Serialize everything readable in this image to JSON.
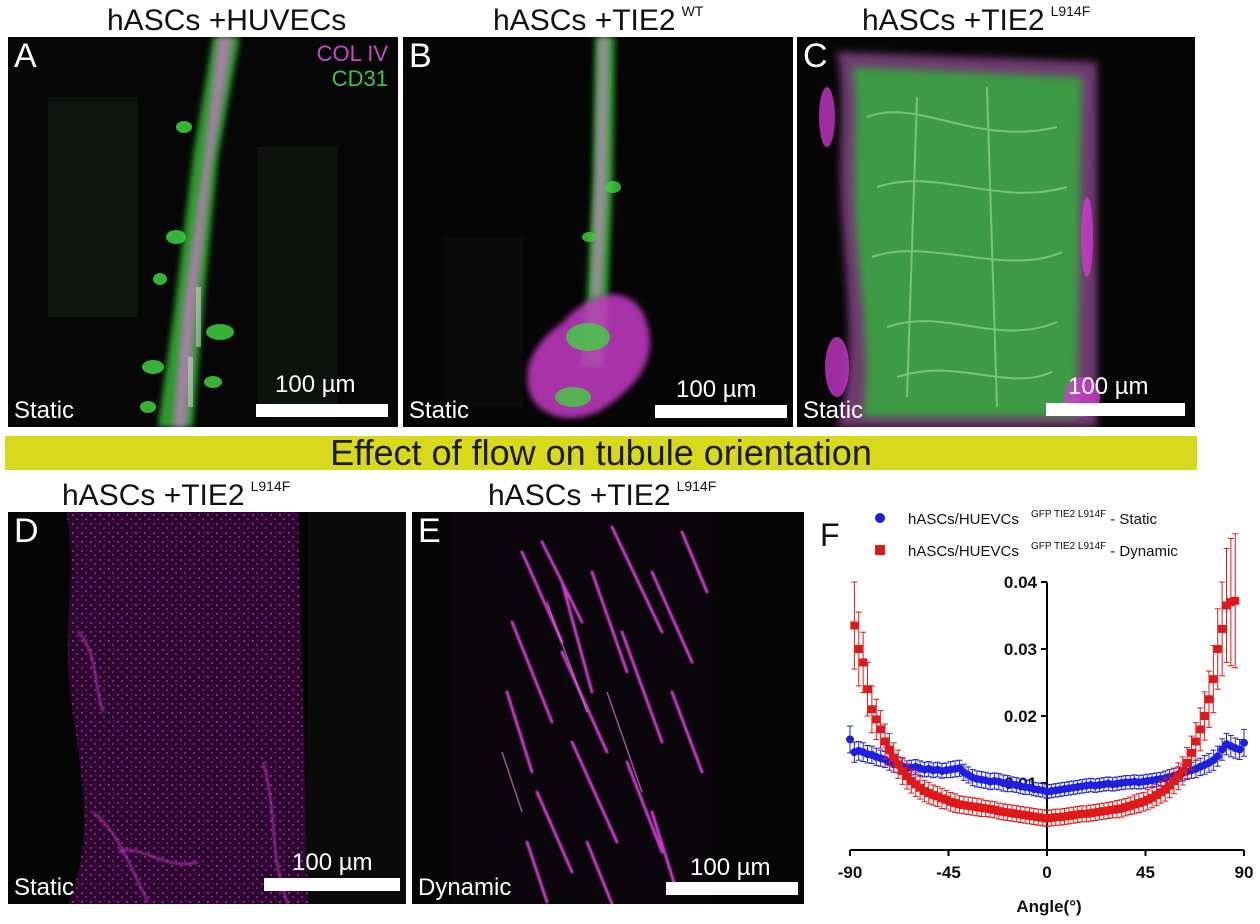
{
  "titles": {
    "a": {
      "text": "hASCs +HUVECs",
      "sup": ""
    },
    "b": {
      "text": "hASCs +TIE2",
      "sup": "WT"
    },
    "c": {
      "text": "hASCs +TIE2",
      "sup": "L914F"
    },
    "d": {
      "text": "hASCs +TIE2",
      "sup": "L914F"
    },
    "e": {
      "text": "hASCs +TIE2",
      "sup": "L914F"
    }
  },
  "panels": {
    "a": {
      "letter": "A",
      "condition": "Static",
      "scalebar": "100 µm"
    },
    "b": {
      "letter": "B",
      "condition": "Static",
      "scalebar": "100 µm"
    },
    "c": {
      "letter": "C",
      "condition": "Static",
      "scalebar": "100 µm"
    },
    "d": {
      "letter": "D",
      "condition": "Static",
      "scalebar": "100 µm"
    },
    "e": {
      "letter": "E",
      "condition": "Dynamic",
      "scalebar": "100 µm"
    }
  },
  "channels": {
    "col4": "COL IV",
    "cd31": "CD31"
  },
  "colors": {
    "magenta": "#d63ad6",
    "green": "#3fd23f",
    "banner": "#d9d91c",
    "static_series": "#1f1fe0",
    "dynamic_series": "#e01818"
  },
  "banner": "Effect of flow on tubule orientation",
  "chart_letter": "F",
  "chart_data": {
    "type": "scatter",
    "xlabel": "Angle(°)",
    "ylabel": "",
    "xlim": [
      -90,
      90
    ],
    "ylim": [
      0,
      0.04
    ],
    "xticks": [
      "-90",
      "-45",
      "0",
      "45",
      "90"
    ],
    "yticks": [
      "0.01",
      "0.02",
      "0.03",
      "0.04"
    ],
    "legend_position": "top",
    "series": [
      {
        "name": "hASCs/HUEVCs",
        "sup": "GFP TIE2 L914F",
        "suffix": "- Static",
        "marker": "circle",
        "points": [
          [
            -90,
            0.0165,
            0.002
          ],
          [
            -88,
            0.0146,
            0.0015
          ],
          [
            -86,
            0.0148,
            0.0014
          ],
          [
            -84,
            0.0146,
            0.0014
          ],
          [
            -82,
            0.0143,
            0.0013
          ],
          [
            -80,
            0.0142,
            0.0013
          ],
          [
            -78,
            0.0139,
            0.0013
          ],
          [
            -76,
            0.0137,
            0.0012
          ],
          [
            -74,
            0.0135,
            0.0012
          ],
          [
            -72,
            0.0131,
            0.0012
          ],
          [
            -70,
            0.0128,
            0.0012
          ],
          [
            -68,
            0.0127,
            0.0012
          ],
          [
            -66,
            0.0125,
            0.0011
          ],
          [
            -64,
            0.0122,
            0.0011
          ],
          [
            -62,
            0.0123,
            0.0011
          ],
          [
            -60,
            0.0124,
            0.0011
          ],
          [
            -58,
            0.0122,
            0.0011
          ],
          [
            -56,
            0.012,
            0.0011
          ],
          [
            -54,
            0.0121,
            0.0011
          ],
          [
            -52,
            0.0119,
            0.0011
          ],
          [
            -50,
            0.012,
            0.0011
          ],
          [
            -48,
            0.0118,
            0.0011
          ],
          [
            -46,
            0.0119,
            0.0011
          ],
          [
            -44,
            0.012,
            0.0012
          ],
          [
            -42,
            0.0121,
            0.0012
          ],
          [
            -40,
            0.0122,
            0.0012
          ],
          [
            -38,
            0.0116,
            0.0012
          ],
          [
            -36,
            0.0112,
            0.0012
          ],
          [
            -34,
            0.0108,
            0.0012
          ],
          [
            -32,
            0.0106,
            0.0012
          ],
          [
            -30,
            0.0105,
            0.0012
          ],
          [
            -28,
            0.0104,
            0.0012
          ],
          [
            -26,
            0.0102,
            0.0012
          ],
          [
            -24,
            0.0103,
            0.0012
          ],
          [
            -22,
            0.0102,
            0.0012
          ],
          [
            -20,
            0.01,
            0.0012
          ],
          [
            -18,
            0.0099,
            0.0012
          ],
          [
            -16,
            0.0098,
            0.0011
          ],
          [
            -14,
            0.0097,
            0.0011
          ],
          [
            -12,
            0.0095,
            0.0011
          ],
          [
            -10,
            0.0094,
            0.0011
          ],
          [
            -8,
            0.0093,
            0.001
          ],
          [
            -6,
            0.0091,
            0.001
          ],
          [
            -4,
            0.009,
            0.001
          ],
          [
            -2,
            0.0089,
            0.001
          ],
          [
            0,
            0.0087,
            0.001
          ],
          [
            2,
            0.0088,
            0.001
          ],
          [
            4,
            0.0089,
            0.001
          ],
          [
            6,
            0.009,
            0.001
          ],
          [
            8,
            0.0091,
            0.001
          ],
          [
            10,
            0.0092,
            0.001
          ],
          [
            12,
            0.0093,
            0.001
          ],
          [
            14,
            0.0094,
            0.001
          ],
          [
            16,
            0.0095,
            0.001
          ],
          [
            18,
            0.0096,
            0.001
          ],
          [
            20,
            0.0097,
            0.001
          ],
          [
            22,
            0.0096,
            0.001
          ],
          [
            24,
            0.0097,
            0.001
          ],
          [
            26,
            0.0098,
            0.001
          ],
          [
            28,
            0.0099,
            0.001
          ],
          [
            30,
            0.0098,
            0.001
          ],
          [
            32,
            0.0099,
            0.001
          ],
          [
            34,
            0.01,
            0.001
          ],
          [
            36,
            0.0101,
            0.001
          ],
          [
            38,
            0.0101,
            0.001
          ],
          [
            40,
            0.0102,
            0.001
          ],
          [
            42,
            0.0101,
            0.001
          ],
          [
            44,
            0.0102,
            0.001
          ],
          [
            46,
            0.0103,
            0.001
          ],
          [
            48,
            0.0104,
            0.001
          ],
          [
            50,
            0.0105,
            0.001
          ],
          [
            52,
            0.0106,
            0.001
          ],
          [
            54,
            0.0107,
            0.0011
          ],
          [
            56,
            0.0109,
            0.0011
          ],
          [
            58,
            0.0111,
            0.0011
          ],
          [
            60,
            0.0113,
            0.0011
          ],
          [
            62,
            0.0115,
            0.0012
          ],
          [
            64,
            0.0117,
            0.0012
          ],
          [
            66,
            0.0119,
            0.0012
          ],
          [
            68,
            0.0121,
            0.0013
          ],
          [
            70,
            0.0124,
            0.0013
          ],
          [
            72,
            0.0127,
            0.0014
          ],
          [
            74,
            0.013,
            0.0014
          ],
          [
            76,
            0.0134,
            0.0015
          ],
          [
            78,
            0.014,
            0.0015
          ],
          [
            80,
            0.015,
            0.0016
          ],
          [
            82,
            0.0158,
            0.0016
          ],
          [
            84,
            0.0155,
            0.0016
          ],
          [
            86,
            0.0152,
            0.0015
          ],
          [
            88,
            0.015,
            0.0015
          ],
          [
            90,
            0.016,
            0.002
          ]
        ]
      },
      {
        "name": "hASCs/HUEVCs",
        "sup": "GFP TIE2 L914F",
        "suffix": "- Dynamic",
        "marker": "square",
        "points": [
          [
            -88,
            0.0335,
            0.0065
          ],
          [
            -86,
            0.03,
            0.0055
          ],
          [
            -84,
            0.028,
            0.0045
          ],
          [
            -82,
            0.024,
            0.004
          ],
          [
            -80,
            0.021,
            0.0035
          ],
          [
            -78,
            0.0195,
            0.003
          ],
          [
            -76,
            0.018,
            0.0028
          ],
          [
            -74,
            0.0162,
            0.0026
          ],
          [
            -72,
            0.015,
            0.0024
          ],
          [
            -70,
            0.0138,
            0.0022
          ],
          [
            -68,
            0.0128,
            0.0021
          ],
          [
            -66,
            0.0118,
            0.002
          ],
          [
            -64,
            0.011,
            0.0019
          ],
          [
            -62,
            0.0103,
            0.0018
          ],
          [
            -60,
            0.0098,
            0.0018
          ],
          [
            -58,
            0.0093,
            0.0017
          ],
          [
            -56,
            0.0088,
            0.0016
          ],
          [
            -54,
            0.0085,
            0.0016
          ],
          [
            -52,
            0.0082,
            0.0015
          ],
          [
            -50,
            0.008,
            0.0015
          ],
          [
            -48,
            0.0077,
            0.0015
          ],
          [
            -46,
            0.0075,
            0.0014
          ],
          [
            -44,
            0.0072,
            0.0014
          ],
          [
            -42,
            0.007,
            0.0014
          ],
          [
            -40,
            0.0068,
            0.0013
          ],
          [
            -38,
            0.0067,
            0.0013
          ],
          [
            -36,
            0.0066,
            0.0013
          ],
          [
            -34,
            0.0065,
            0.0013
          ],
          [
            -32,
            0.0064,
            0.0013
          ],
          [
            -30,
            0.0063,
            0.0013
          ],
          [
            -28,
            0.0062,
            0.0012
          ],
          [
            -26,
            0.0061,
            0.0012
          ],
          [
            -24,
            0.006,
            0.0012
          ],
          [
            -22,
            0.0058,
            0.0012
          ],
          [
            -20,
            0.0057,
            0.0012
          ],
          [
            -18,
            0.0056,
            0.0012
          ],
          [
            -16,
            0.0055,
            0.0012
          ],
          [
            -14,
            0.0054,
            0.0012
          ],
          [
            -12,
            0.0053,
            0.0012
          ],
          [
            -10,
            0.0052,
            0.0012
          ],
          [
            -8,
            0.0051,
            0.0012
          ],
          [
            -6,
            0.005,
            0.0012
          ],
          [
            -4,
            0.0049,
            0.0012
          ],
          [
            -2,
            0.0048,
            0.0012
          ],
          [
            0,
            0.0047,
            0.0012
          ],
          [
            2,
            0.0048,
            0.0012
          ],
          [
            4,
            0.0049,
            0.0012
          ],
          [
            6,
            0.0049,
            0.0012
          ],
          [
            8,
            0.005,
            0.0012
          ],
          [
            10,
            0.0051,
            0.0012
          ],
          [
            12,
            0.0052,
            0.0012
          ],
          [
            14,
            0.0053,
            0.0012
          ],
          [
            16,
            0.0054,
            0.0012
          ],
          [
            18,
            0.0054,
            0.0012
          ],
          [
            20,
            0.0055,
            0.0012
          ],
          [
            22,
            0.0056,
            0.0012
          ],
          [
            24,
            0.0057,
            0.0012
          ],
          [
            26,
            0.0058,
            0.0012
          ],
          [
            28,
            0.0059,
            0.0012
          ],
          [
            30,
            0.006,
            0.0012
          ],
          [
            32,
            0.0061,
            0.0013
          ],
          [
            34,
            0.0062,
            0.0013
          ],
          [
            36,
            0.0064,
            0.0013
          ],
          [
            38,
            0.0066,
            0.0013
          ],
          [
            40,
            0.0068,
            0.0014
          ],
          [
            42,
            0.007,
            0.0014
          ],
          [
            44,
            0.0072,
            0.0014
          ],
          [
            46,
            0.0075,
            0.0015
          ],
          [
            48,
            0.0078,
            0.0015
          ],
          [
            50,
            0.0082,
            0.0016
          ],
          [
            52,
            0.0086,
            0.0016
          ],
          [
            54,
            0.009,
            0.0017
          ],
          [
            56,
            0.0096,
            0.0018
          ],
          [
            58,
            0.0103,
            0.0019
          ],
          [
            60,
            0.011,
            0.002
          ],
          [
            62,
            0.0118,
            0.0021
          ],
          [
            64,
            0.013,
            0.0023
          ],
          [
            66,
            0.0145,
            0.0025
          ],
          [
            68,
            0.0162,
            0.0028
          ],
          [
            70,
            0.018,
            0.0032
          ],
          [
            72,
            0.02,
            0.0036
          ],
          [
            74,
            0.0225,
            0.0042
          ],
          [
            76,
            0.0255,
            0.005
          ],
          [
            78,
            0.03,
            0.006
          ],
          [
            80,
            0.033,
            0.007
          ],
          [
            82,
            0.0365,
            0.0085
          ],
          [
            84,
            0.037,
            0.0095
          ],
          [
            86,
            0.0372,
            0.01
          ]
        ]
      }
    ]
  }
}
